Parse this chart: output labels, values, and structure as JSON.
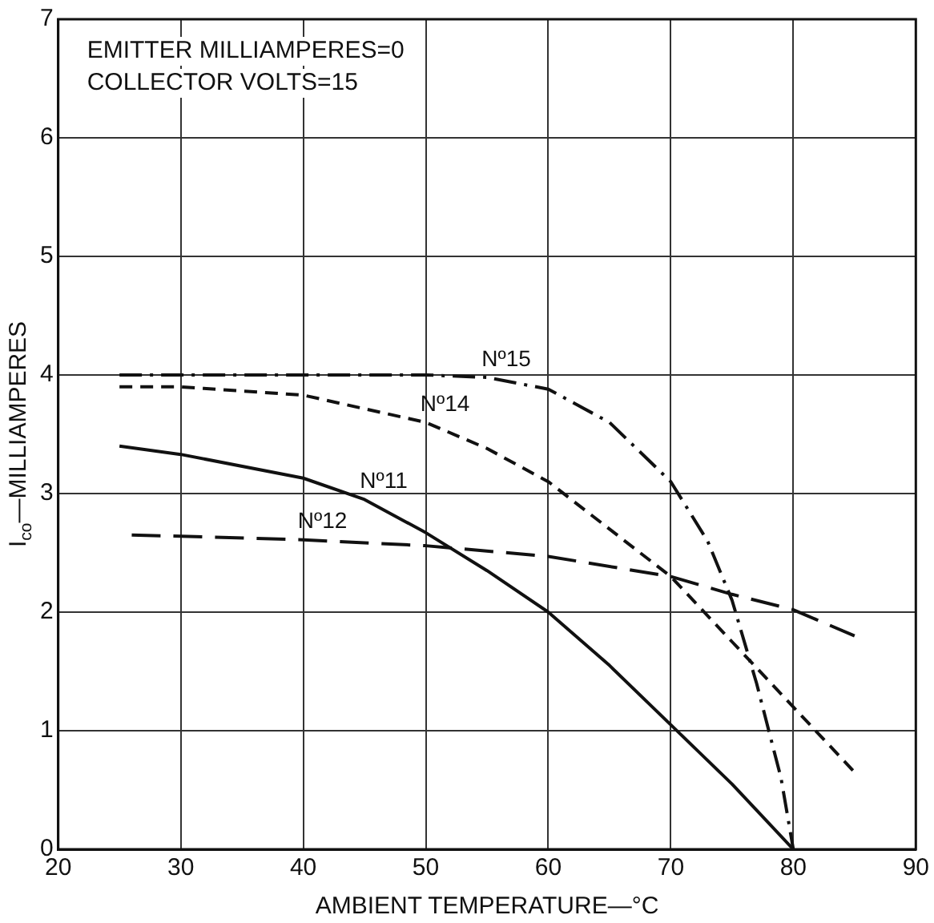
{
  "chart_data": {
    "type": "line",
    "xlabel": "AMBIENT TEMPERATURE—°C",
    "ylabel": "I$_{co}$—MILLIAMPERES",
    "annotations": [
      "EMITTER MILLIAMPERES=0",
      "COLLECTOR VOLTS=15"
    ],
    "xlim": [
      20,
      90
    ],
    "xticks": [
      20,
      30,
      40,
      50,
      60,
      70,
      80,
      90
    ],
    "ylim": [
      0,
      7
    ],
    "yticks": [
      0,
      1,
      2,
      3,
      4,
      5,
      6,
      7
    ],
    "grid": true,
    "legend": false,
    "marker": "none",
    "series": [
      {
        "name": "Nº15",
        "color": "#111111",
        "line_style": "dashdot",
        "x": [
          25,
          30,
          40,
          50,
          55,
          60,
          65,
          70,
          73,
          75,
          77,
          79,
          80
        ],
        "values": [
          4,
          4,
          4,
          4,
          3.98,
          3.88,
          3.6,
          3.1,
          2.6,
          2.1,
          1.4,
          0.6,
          0
        ]
      },
      {
        "name": "Nº14",
        "color": "#111111",
        "line_style": "dashed",
        "x": [
          25,
          30,
          40,
          50,
          55,
          60,
          65,
          70,
          75,
          80,
          85
        ],
        "values": [
          3.9,
          3.9,
          3.83,
          3.6,
          3.38,
          3.1,
          2.7,
          2.3,
          1.75,
          1.2,
          0.65
        ]
      },
      {
        "name": "Nº11",
        "color": "#111111",
        "line_style": "solid",
        "x": [
          25,
          30,
          40,
          45,
          50,
          55,
          60,
          65,
          70,
          75,
          80
        ],
        "values": [
          3.4,
          3.33,
          3.13,
          2.95,
          2.67,
          2.35,
          2,
          1.55,
          1.05,
          0.55,
          0
        ]
      },
      {
        "name": "Nº12",
        "color": "#111111",
        "line_style": "longdash",
        "x": [
          26,
          30,
          40,
          50,
          60,
          70,
          75,
          80,
          85
        ],
        "values": [
          2.65,
          2.64,
          2.61,
          2.56,
          2.47,
          2.3,
          2.15,
          2.02,
          1.8
        ]
      }
    ]
  }
}
